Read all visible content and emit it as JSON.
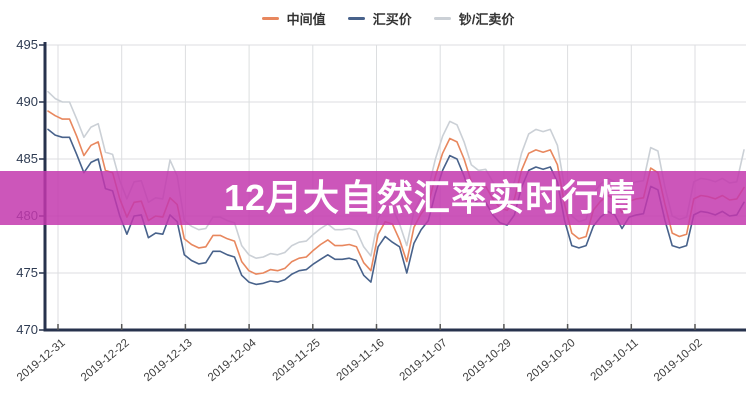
{
  "legend": {
    "items": [
      {
        "label": "中间值",
        "color": "#e8875e"
      },
      {
        "label": "汇买价",
        "color": "#48628b"
      },
      {
        "label": "钞/汇卖价",
        "color": "#cbd0d6"
      }
    ]
  },
  "overlay": {
    "text": "12月大自然汇率实时行情",
    "background": "rgba(195,56,174,0.85)",
    "text_color": "#ffffff"
  },
  "chart_data": {
    "type": "line",
    "title": "",
    "xlabel": "",
    "ylabel": "",
    "ylim": [
      470,
      495
    ],
    "y_ticks": [
      495,
      490,
      485,
      480,
      475,
      470
    ],
    "x_tick_labels": [
      "2019-12-31",
      "2019-12-22",
      "2019-12-13",
      "2019-12-04",
      "2019-11-25",
      "2019-11-16",
      "2019-11-07",
      "2019-10-29",
      "2019-10-20",
      "2019-10-11",
      "2019-10-02"
    ],
    "x_note": "one data point per day; newest date at left edge, time runs backwards to the right; ticks every 9 days",
    "grid": true,
    "legend_position": "top-center",
    "colors": {
      "grid": "#dcdee0",
      "axis": "#27324d",
      "axis_tick": "#555555",
      "y_label": "#2e3b52",
      "x_label": "#3d3d3d"
    },
    "series": [
      {
        "name": "中间值",
        "color": "#e8875e",
        "values": [
          489.2,
          488.8,
          488.5,
          488.5,
          487.0,
          485.3,
          486.2,
          486.5,
          484.0,
          483.8,
          481.5,
          479.9,
          481.2,
          481.3,
          479.6,
          480.0,
          479.9,
          481.6,
          481.0,
          478.0,
          477.5,
          477.2,
          477.3,
          478.3,
          478.3,
          478.0,
          477.8,
          476.0,
          475.2,
          474.9,
          475.0,
          475.3,
          475.2,
          475.4,
          476.0,
          476.3,
          476.4,
          477.0,
          477.5,
          477.9,
          477.4,
          477.4,
          477.5,
          477.3,
          475.9,
          475.2,
          478.4,
          479.5,
          479.3,
          477.9,
          476.0,
          479.0,
          480.2,
          481.0,
          483.5,
          485.5,
          486.8,
          486.5,
          485.0,
          483.0,
          482.5,
          482.6,
          481.5,
          480.7,
          480.5,
          481.5,
          484.0,
          485.5,
          485.8,
          485.6,
          485.8,
          484.5,
          481.0,
          478.5,
          478.0,
          478.2,
          480.5,
          481.3,
          481.8,
          481.5,
          480.3,
          481.3,
          481.5,
          481.6,
          484.2,
          483.8,
          481.0,
          478.5,
          478.2,
          478.4,
          481.5,
          481.8,
          481.7,
          481.5,
          481.8,
          481.4,
          481.5,
          482.5
        ]
      },
      {
        "name": "汇买价",
        "color": "#48628b",
        "values": [
          487.6,
          487.1,
          486.9,
          486.9,
          485.4,
          483.8,
          484.7,
          485.0,
          482.4,
          482.2,
          480.0,
          478.4,
          480.0,
          480.1,
          478.1,
          478.5,
          478.4,
          480.1,
          479.5,
          476.6,
          476.1,
          475.8,
          475.9,
          476.9,
          476.9,
          476.6,
          476.4,
          474.8,
          474.2,
          474.0,
          474.1,
          474.3,
          474.2,
          474.4,
          474.9,
          475.2,
          475.3,
          475.8,
          476.2,
          476.6,
          476.2,
          476.2,
          476.3,
          476.1,
          474.8,
          474.2,
          477.3,
          478.2,
          477.7,
          477.3,
          475.0,
          477.6,
          478.8,
          479.6,
          482.0,
          484.0,
          485.3,
          485.0,
          483.5,
          481.6,
          481.1,
          481.2,
          480.1,
          479.4,
          479.2,
          480.1,
          482.5,
          484.0,
          484.3,
          484.1,
          484.3,
          483.0,
          479.6,
          477.4,
          477.2,
          477.4,
          479.1,
          479.9,
          480.4,
          480.1,
          478.9,
          479.9,
          480.1,
          480.2,
          482.6,
          482.3,
          479.6,
          477.4,
          477.2,
          477.4,
          480.1,
          480.4,
          480.3,
          480.1,
          480.4,
          480.0,
          480.1,
          481.2
        ]
      },
      {
        "name": "钞/汇卖价",
        "color": "#cbd0d6",
        "values": [
          490.9,
          490.3,
          490.0,
          490.0,
          488.5,
          486.9,
          487.8,
          488.1,
          485.6,
          485.4,
          483.1,
          481.5,
          483.0,
          483.1,
          481.2,
          481.6,
          481.5,
          484.9,
          483.5,
          479.6,
          479.1,
          478.8,
          478.9,
          479.9,
          479.9,
          479.6,
          479.4,
          477.4,
          476.6,
          476.3,
          476.4,
          476.7,
          476.6,
          476.8,
          477.4,
          477.7,
          477.8,
          478.4,
          478.9,
          479.3,
          478.8,
          478.8,
          478.9,
          478.7,
          477.3,
          476.5,
          479.8,
          480.9,
          480.7,
          479.3,
          477.4,
          480.4,
          481.6,
          482.4,
          485.0,
          487.0,
          488.3,
          488.0,
          486.5,
          484.5,
          484.0,
          484.1,
          483.0,
          482.2,
          482.0,
          483.0,
          485.5,
          487.2,
          487.6,
          487.4,
          487.6,
          486.2,
          482.5,
          480.0,
          479.5,
          479.7,
          482.0,
          482.8,
          483.3,
          483.0,
          481.8,
          482.8,
          483.0,
          483.1,
          486.0,
          485.7,
          482.5,
          480.0,
          479.7,
          479.9,
          483.0,
          483.3,
          483.2,
          483.0,
          483.3,
          482.9,
          483.0,
          485.8
        ]
      }
    ]
  }
}
